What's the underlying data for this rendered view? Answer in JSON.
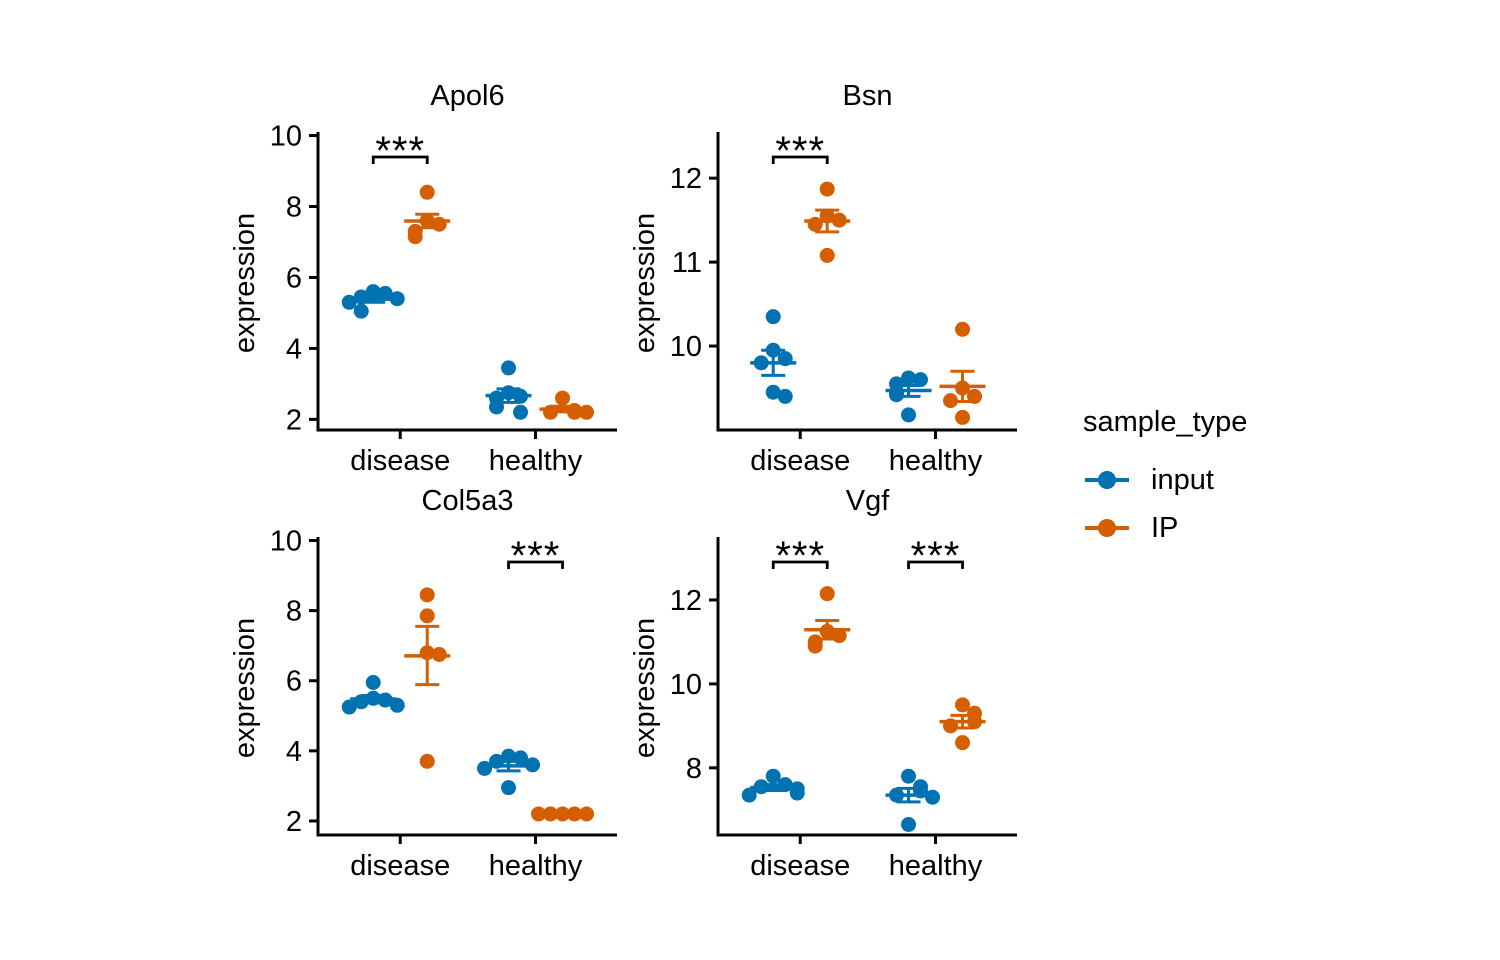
{
  "figure": {
    "background": "#ffffff"
  },
  "colors": {
    "input": "#0072B2",
    "IP": "#D55E00",
    "axis": "#000000",
    "text": "#000000"
  },
  "legend": {
    "title": "sample_type",
    "items": [
      {
        "label": "input",
        "color": "#0072B2",
        "marker": "dot-with-line"
      },
      {
        "label": "IP",
        "color": "#D55E00",
        "marker": "dot-with-line"
      }
    ]
  },
  "chart_data": [
    {
      "type": "scatter",
      "title": "Apol6",
      "xlabel": "",
      "ylabel": "expression",
      "categories": [
        "disease",
        "healthy"
      ],
      "yticks": [
        2,
        4,
        6,
        8,
        10
      ],
      "ylim": [
        1.7,
        10.1
      ],
      "grid": false,
      "groups": [
        {
          "category": "disease",
          "series": [
            {
              "name": "input",
              "points": [
                5.6,
                5.55,
                5.45,
                5.4,
                5.3,
                5.05
              ],
              "mean": 5.39,
              "err_low": 5.3,
              "err_high": 5.48
            },
            {
              "name": "IP",
              "points": [
                8.4,
                7.6,
                7.5,
                7.3,
                7.15
              ],
              "mean": 7.59,
              "err_low": 7.4,
              "err_high": 7.78
            }
          ]
        },
        {
          "category": "healthy",
          "series": [
            {
              "name": "input",
              "points": [
                3.45,
                2.75,
                2.65,
                2.6,
                2.35,
                2.2
              ],
              "mean": 2.67,
              "err_low": 2.48,
              "err_high": 2.86
            },
            {
              "name": "IP",
              "points": [
                2.6,
                2.25,
                2.2,
                2.2,
                2.2
              ],
              "mean": 2.29,
              "err_low": 2.21,
              "err_high": 2.37
            }
          ]
        }
      ],
      "significance": [
        {
          "category": "disease",
          "label": "***"
        }
      ]
    },
    {
      "type": "scatter",
      "title": "Bsn",
      "xlabel": "",
      "ylabel": "expression",
      "categories": [
        "disease",
        "healthy"
      ],
      "yticks": [
        10,
        11,
        12
      ],
      "ylim": [
        9.0,
        12.55
      ],
      "grid": false,
      "groups": [
        {
          "category": "disease",
          "series": [
            {
              "name": "input",
              "points": [
                10.35,
                9.95,
                9.85,
                9.8,
                9.45,
                9.4
              ],
              "mean": 9.8,
              "err_low": 9.65,
              "err_high": 9.95
            },
            {
              "name": "IP",
              "points": [
                11.87,
                11.55,
                11.5,
                11.45,
                11.08
              ],
              "mean": 11.49,
              "err_low": 11.36,
              "err_high": 11.62
            }
          ]
        },
        {
          "category": "healthy",
          "series": [
            {
              "name": "input",
              "points": [
                9.62,
                9.6,
                9.55,
                9.45,
                9.42,
                9.18
              ],
              "mean": 9.47,
              "err_low": 9.4,
              "err_high": 9.53
            },
            {
              "name": "IP",
              "points": [
                10.2,
                9.5,
                9.4,
                9.35,
                9.15
              ],
              "mean": 9.52,
              "err_low": 9.34,
              "err_high": 9.7
            }
          ]
        }
      ],
      "significance": [
        {
          "category": "disease",
          "label": "***"
        }
      ]
    },
    {
      "type": "scatter",
      "title": "Col5a3",
      "xlabel": "",
      "ylabel": "expression",
      "categories": [
        "disease",
        "healthy"
      ],
      "yticks": [
        2,
        4,
        6,
        8,
        10
      ],
      "ylim": [
        1.6,
        10.1
      ],
      "grid": false,
      "groups": [
        {
          "category": "disease",
          "series": [
            {
              "name": "input",
              "points": [
                5.95,
                5.5,
                5.45,
                5.4,
                5.3,
                5.25
              ],
              "mean": 5.48,
              "err_low": 5.37,
              "err_high": 5.58
            },
            {
              "name": "IP",
              "points": [
                8.45,
                7.85,
                6.8,
                6.75,
                3.7
              ],
              "mean": 6.71,
              "err_low": 5.89,
              "err_high": 7.55
            }
          ]
        },
        {
          "category": "healthy",
          "series": [
            {
              "name": "input",
              "points": [
                3.85,
                3.8,
                3.7,
                3.6,
                3.5,
                2.95
              ],
              "mean": 3.57,
              "err_low": 3.43,
              "err_high": 3.7
            },
            {
              "name": "IP",
              "points": [
                2.2,
                2.2,
                2.2,
                2.2,
                2.2
              ],
              "mean": 2.2,
              "err_low": 2.2,
              "err_high": 2.2
            }
          ]
        }
      ],
      "significance": [
        {
          "category": "healthy",
          "label": "***"
        }
      ]
    },
    {
      "type": "scatter",
      "title": "Vgf",
      "xlabel": "",
      "ylabel": "expression",
      "categories": [
        "disease",
        "healthy"
      ],
      "yticks": [
        8,
        10,
        12
      ],
      "ylim": [
        6.4,
        13.5
      ],
      "grid": false,
      "groups": [
        {
          "category": "disease",
          "series": [
            {
              "name": "input",
              "points": [
                7.8,
                7.6,
                7.55,
                7.5,
                7.4,
                7.35
              ],
              "mean": 7.53,
              "err_low": 7.46,
              "err_high": 7.6
            },
            {
              "name": "IP",
              "points": [
                12.15,
                11.25,
                11.15,
                11.0,
                10.9
              ],
              "mean": 11.29,
              "err_low": 11.07,
              "err_high": 11.51
            }
          ]
        },
        {
          "category": "healthy",
          "series": [
            {
              "name": "input",
              "points": [
                7.8,
                7.55,
                7.45,
                7.35,
                7.3,
                6.65
              ],
              "mean": 7.35,
              "err_low": 7.19,
              "err_high": 7.51
            },
            {
              "name": "IP",
              "points": [
                9.5,
                9.3,
                9.1,
                9.0,
                8.6
              ],
              "mean": 9.1,
              "err_low": 8.95,
              "err_high": 9.25
            }
          ]
        }
      ],
      "significance": [
        {
          "category": "disease",
          "label": "***"
        },
        {
          "category": "healthy",
          "label": "***"
        }
      ]
    }
  ]
}
